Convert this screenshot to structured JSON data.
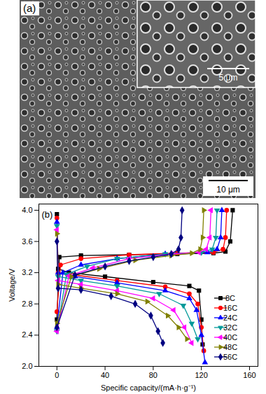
{
  "image_panel": {
    "label": "(a)",
    "scale_bar": "10 μm",
    "inset_scale_bar": "5 μm"
  },
  "chart_data": {
    "type": "line",
    "annotations": [
      "(b)"
    ],
    "x_label": "Specific capacity/(mA·h·g⁻¹)",
    "y_label": "Voltage/V",
    "xlim": [
      -15,
      167
    ],
    "xticks": [
      0,
      40,
      80,
      120,
      160
    ],
    "ylim": [
      2.0,
      4.08
    ],
    "yticks": [
      {
        "value": 2.0,
        "label": "2.0"
      },
      {
        "value": 2.4,
        "label": "2.4"
      },
      {
        "value": 2.8,
        "label": "2.8"
      },
      {
        "value": 3.2,
        "label": "3.2"
      },
      {
        "value": 3.6,
        "label": "3.6"
      },
      {
        "value": 4.0,
        "label": "4.0"
      }
    ],
    "grid": false,
    "legend": "lower right",
    "series": [
      {
        "name": "8C",
        "color": "#000000",
        "marker": "square",
        "x": [
          0,
          2,
          20,
          60,
          100,
          130,
          140,
          144,
          146,
          null,
          0,
          1,
          10,
          40,
          80,
          110,
          118,
          120,
          121
        ],
        "values": [
          2.6,
          3.4,
          3.42,
          3.43,
          3.44,
          3.45,
          3.47,
          3.6,
          4.0,
          null,
          3.95,
          3.25,
          3.2,
          3.15,
          3.08,
          3.03,
          2.97,
          2.6,
          2.28
        ]
      },
      {
        "name": "16C",
        "color": "#ff0000",
        "marker": "circle",
        "x": [
          0,
          3,
          20,
          60,
          100,
          130,
          138,
          140,
          141,
          null,
          0,
          1,
          15,
          50,
          90,
          110,
          117,
          120,
          122
        ],
        "values": [
          2.7,
          3.3,
          3.38,
          3.43,
          3.45,
          3.46,
          3.5,
          3.65,
          4.0,
          null,
          3.9,
          3.2,
          3.17,
          3.1,
          3.02,
          2.93,
          2.8,
          2.5,
          2.2
        ]
      },
      {
        "name": "24C",
        "color": "#0000ff",
        "marker": "triangle-up",
        "x": [
          0,
          5,
          20,
          50,
          90,
          125,
          133,
          136,
          137,
          null,
          0,
          1,
          15,
          50,
          90,
          110,
          116,
          120,
          123
        ],
        "values": [
          2.5,
          3.2,
          3.3,
          3.38,
          3.44,
          3.46,
          3.5,
          3.65,
          4.0,
          null,
          3.85,
          3.2,
          3.15,
          3.07,
          2.97,
          2.87,
          2.72,
          2.4,
          2.05
        ]
      },
      {
        "name": "32C",
        "color": "#009999",
        "marker": "triangle-down",
        "x": [
          0,
          8,
          25,
          50,
          90,
          120,
          129,
          132,
          133,
          null,
          0,
          1,
          20,
          50,
          85,
          105,
          112,
          117
        ],
        "values": [
          2.45,
          3.18,
          3.28,
          3.38,
          3.44,
          3.46,
          3.5,
          3.65,
          4.0,
          null,
          3.8,
          3.15,
          3.1,
          3.03,
          2.93,
          2.78,
          2.55,
          2.35
        ]
      },
      {
        "name": "40C",
        "color": "#ff00ff",
        "marker": "triangle-left",
        "x": [
          0,
          10,
          30,
          60,
          95,
          118,
          124,
          127,
          128,
          null,
          0,
          1,
          20,
          50,
          80,
          97,
          106,
          112
        ],
        "values": [
          2.45,
          3.16,
          3.26,
          3.38,
          3.44,
          3.46,
          3.5,
          3.65,
          4.0,
          null,
          3.75,
          3.1,
          3.05,
          2.97,
          2.87,
          2.72,
          2.5,
          2.3
        ]
      },
      {
        "name": "48C",
        "color": "#808000",
        "marker": "triangle-right",
        "x": [
          0,
          12,
          35,
          65,
          95,
          112,
          119,
          121,
          122,
          null,
          0,
          1,
          20,
          50,
          75,
          92,
          101,
          108
        ],
        "values": [
          2.55,
          3.15,
          3.25,
          3.36,
          3.42,
          3.45,
          3.5,
          3.65,
          4.0,
          null,
          3.7,
          3.05,
          3.0,
          2.93,
          2.83,
          2.65,
          2.5,
          2.35
        ]
      },
      {
        "name": "56C",
        "color": "#000080",
        "marker": "diamond",
        "x": [
          0,
          15,
          40,
          60,
          80,
          95,
          101,
          103,
          104,
          null,
          0,
          1,
          20,
          45,
          65,
          78,
          84,
          88
        ],
        "values": [
          2.5,
          3.17,
          3.28,
          3.35,
          3.4,
          3.44,
          3.5,
          3.65,
          4.0,
          null,
          3.6,
          3.0,
          2.98,
          2.9,
          2.8,
          2.65,
          2.45,
          2.3
        ]
      }
    ]
  }
}
